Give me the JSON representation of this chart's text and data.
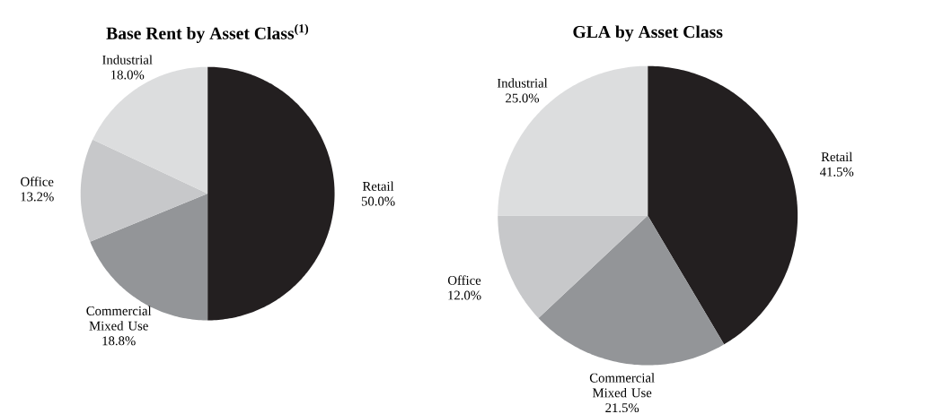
{
  "chart_data": [
    {
      "type": "pie",
      "title": "Base Rent by Asset Class$^{(1)}$",
      "categories": [
        "Retail",
        "Commercial Mixed Use",
        "Office",
        "Industrial"
      ],
      "values": [
        50.0,
        18.8,
        13.2,
        18.0
      ],
      "colors": [
        "#231f20",
        "#939598",
        "#c7c8ca",
        "#dcddde"
      ],
      "value_labels": [
        "50.0%",
        "18.8%",
        "13.2%",
        "18.0%"
      ]
    },
    {
      "type": "pie",
      "title": "GLA by Asset Class",
      "categories": [
        "Retail",
        "Commercial Mixed Use",
        "Office",
        "Industrial"
      ],
      "values": [
        41.5,
        21.5,
        12.0,
        25.0
      ],
      "colors": [
        "#231f20",
        "#939598",
        "#c7c8ca",
        "#dcddde"
      ],
      "value_labels": [
        "41.5%",
        "21.5%",
        "12.0%",
        "25.0%"
      ]
    }
  ]
}
